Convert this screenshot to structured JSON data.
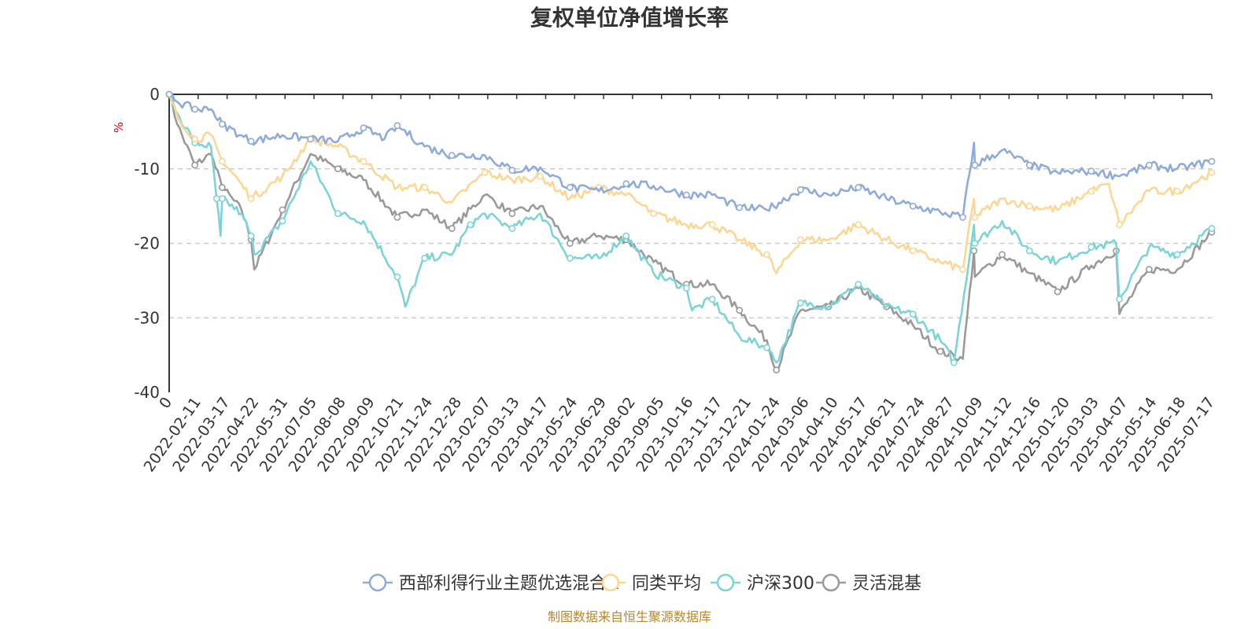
{
  "chart_data": {
    "type": "line",
    "title": "复权单位净值增长率",
    "ylabel": "%",
    "ylim": [
      -40,
      0
    ],
    "yticks": [
      0,
      -10,
      -20,
      -30,
      -40
    ],
    "xlim": [
      "2022-01-10",
      "2025-07-31"
    ],
    "xticks": [
      "0",
      "2022-02-11",
      "2022-03-17",
      "2022-04-22",
      "2022-05-31",
      "2022-07-05",
      "2022-08-08",
      "2022-09-09",
      "2022-10-21",
      "2022-11-24",
      "2022-12-28",
      "2023-02-07",
      "2023-03-13",
      "2023-04-17",
      "2023-05-24",
      "2023-06-29",
      "2023-08-02",
      "2023-09-05",
      "2023-10-16",
      "2023-11-17",
      "2023-12-21",
      "2024-01-24",
      "2024-03-06",
      "2024-04-10",
      "2024-05-17",
      "2024-06-21",
      "2024-07-24",
      "2024-08-27",
      "2024-10-09",
      "2024-11-12",
      "2024-12-16",
      "2025-01-20",
      "2025-03-03",
      "2025-04-07",
      "2025-05-14",
      "2025-06-18",
      "2025-07-17"
    ],
    "grid": true,
    "legend_position": "bottom",
    "series": [
      {
        "name": "西部利得行业主题优选混合A",
        "color": "#8fabd9",
        "points": [
          [
            "2022-01-10",
            0
          ],
          [
            "2022-01-20",
            -1
          ],
          [
            "2022-02-11",
            -2
          ],
          [
            "2022-03-03",
            -2
          ],
          [
            "2022-03-17",
            -4
          ],
          [
            "2022-04-10",
            -5.5
          ],
          [
            "2022-04-22",
            -6.3
          ],
          [
            "2022-05-31",
            -5.5
          ],
          [
            "2022-07-05",
            -6
          ],
          [
            "2022-08-08",
            -6.3
          ],
          [
            "2022-09-09",
            -4.5
          ],
          [
            "2022-10-05",
            -6
          ],
          [
            "2022-10-21",
            -4.2
          ],
          [
            "2022-11-24",
            -7
          ],
          [
            "2022-12-28",
            -8.2
          ],
          [
            "2023-02-07",
            -8.2
          ],
          [
            "2023-03-13",
            -10.2
          ],
          [
            "2023-04-17",
            -9.8
          ],
          [
            "2023-05-24",
            -12.5
          ],
          [
            "2023-06-29",
            -13
          ],
          [
            "2023-08-02",
            -12
          ],
          [
            "2023-09-05",
            -12.3
          ],
          [
            "2023-10-16",
            -13.5
          ],
          [
            "2023-11-17",
            -13.5
          ],
          [
            "2023-12-21",
            -15.2
          ],
          [
            "2024-01-24",
            -15.5
          ],
          [
            "2024-03-06",
            -12.8
          ],
          [
            "2024-04-10",
            -13.5
          ],
          [
            "2024-05-17",
            -12.5
          ],
          [
            "2024-06-21",
            -14
          ],
          [
            "2024-07-24",
            -15
          ],
          [
            "2024-08-27",
            -15.8
          ],
          [
            "2024-09-24",
            -16.5
          ],
          [
            "2024-10-08",
            -6.5
          ],
          [
            "2024-10-09",
            -9.5
          ],
          [
            "2024-11-12",
            -7.5
          ],
          [
            "2024-12-16",
            -9.5
          ],
          [
            "2025-01-20",
            -10.5
          ],
          [
            "2025-03-03",
            -10.3
          ],
          [
            "2025-04-07",
            -11
          ],
          [
            "2025-05-14",
            -9.5
          ],
          [
            "2025-06-18",
            -10
          ],
          [
            "2025-07-31",
            -9
          ]
        ]
      },
      {
        "name": "同类平均",
        "color": "#fcd794",
        "points": [
          [
            "2022-01-10",
            0
          ],
          [
            "2022-01-20",
            -3
          ],
          [
            "2022-02-11",
            -6
          ],
          [
            "2022-03-03",
            -5.5
          ],
          [
            "2022-03-17",
            -9
          ],
          [
            "2022-04-10",
            -12
          ],
          [
            "2022-04-22",
            -14
          ],
          [
            "2022-05-31",
            -11
          ],
          [
            "2022-07-05",
            -6
          ],
          [
            "2022-08-08",
            -7
          ],
          [
            "2022-09-09",
            -9
          ],
          [
            "2022-10-21",
            -12.5
          ],
          [
            "2022-11-24",
            -12.5
          ],
          [
            "2022-12-28",
            -14.5
          ],
          [
            "2023-02-07",
            -10.5
          ],
          [
            "2023-03-13",
            -11.5
          ],
          [
            "2023-04-17",
            -11
          ],
          [
            "2023-05-24",
            -14
          ],
          [
            "2023-06-29",
            -12.5
          ],
          [
            "2023-08-02",
            -13.5
          ],
          [
            "2023-09-05",
            -16
          ],
          [
            "2023-10-16",
            -17.5
          ],
          [
            "2023-11-17",
            -17.5
          ],
          [
            "2023-12-21",
            -19.5
          ],
          [
            "2024-01-24",
            -21.5
          ],
          [
            "2024-02-05",
            -24
          ],
          [
            "2024-03-06",
            -19.5
          ],
          [
            "2024-04-10",
            -19.5
          ],
          [
            "2024-05-17",
            -17.5
          ],
          [
            "2024-06-21",
            -19.5
          ],
          [
            "2024-07-24",
            -21
          ],
          [
            "2024-08-27",
            -22.5
          ],
          [
            "2024-09-24",
            -23.5
          ],
          [
            "2024-10-08",
            -14
          ],
          [
            "2024-10-09",
            -16.5
          ],
          [
            "2024-11-12",
            -14
          ],
          [
            "2024-12-16",
            -15
          ],
          [
            "2025-01-20",
            -15.5
          ],
          [
            "2025-03-03",
            -13
          ],
          [
            "2025-03-25",
            -12
          ],
          [
            "2025-04-07",
            -17.5
          ],
          [
            "2025-05-14",
            -13
          ],
          [
            "2025-06-18",
            -13
          ],
          [
            "2025-07-31",
            -10.5
          ]
        ]
      },
      {
        "name": "沪深300",
        "color": "#7ed3d7",
        "points": [
          [
            "2022-01-10",
            0
          ],
          [
            "2022-01-20",
            -2.5
          ],
          [
            "2022-02-11",
            -6.5
          ],
          [
            "2022-03-03",
            -7
          ],
          [
            "2022-03-10",
            -14
          ],
          [
            "2022-03-15",
            -19
          ],
          [
            "2022-03-17",
            -14
          ],
          [
            "2022-04-10",
            -16
          ],
          [
            "2022-04-22",
            -19
          ],
          [
            "2022-04-26",
            -21.5
          ],
          [
            "2022-05-31",
            -17
          ],
          [
            "2022-07-05",
            -9
          ],
          [
            "2022-08-08",
            -16
          ],
          [
            "2022-09-09",
            -17
          ],
          [
            "2022-10-21",
            -24.5
          ],
          [
            "2022-10-31",
            -28.5
          ],
          [
            "2022-11-24",
            -22
          ],
          [
            "2022-12-28",
            -21.5
          ],
          [
            "2023-01-20",
            -17.5
          ],
          [
            "2023-02-07",
            -16
          ],
          [
            "2023-03-13",
            -18
          ],
          [
            "2023-04-17",
            -16
          ],
          [
            "2023-05-24",
            -22
          ],
          [
            "2023-06-29",
            -22
          ],
          [
            "2023-08-02",
            -19
          ],
          [
            "2023-09-05",
            -24
          ],
          [
            "2023-10-16",
            -26
          ],
          [
            "2023-10-23",
            -29
          ],
          [
            "2023-11-17",
            -27.5
          ],
          [
            "2023-12-21",
            -32.5
          ],
          [
            "2024-01-24",
            -34
          ],
          [
            "2024-02-05",
            -36
          ],
          [
            "2024-03-06",
            -28
          ],
          [
            "2024-04-10",
            -28.5
          ],
          [
            "2024-05-17",
            -25.5
          ],
          [
            "2024-06-21",
            -28.5
          ],
          [
            "2024-07-24",
            -29.5
          ],
          [
            "2024-08-27",
            -33
          ],
          [
            "2024-09-13",
            -36
          ],
          [
            "2024-10-08",
            -17.5
          ],
          [
            "2024-10-09",
            -20
          ],
          [
            "2024-11-12",
            -17
          ],
          [
            "2024-12-16",
            -21
          ],
          [
            "2025-01-20",
            -22.5
          ],
          [
            "2025-03-03",
            -20.5
          ],
          [
            "2025-04-03",
            -20
          ],
          [
            "2025-04-07",
            -27.5
          ],
          [
            "2025-05-14",
            -20.5
          ],
          [
            "2025-06-18",
            -21.5
          ],
          [
            "2025-07-31",
            -18
          ]
        ]
      },
      {
        "name": "灵活混基",
        "color": "#9a9a9a",
        "points": [
          [
            "2022-01-10",
            0
          ],
          [
            "2022-01-20",
            -4
          ],
          [
            "2022-02-11",
            -9.5
          ],
          [
            "2022-03-03",
            -8
          ],
          [
            "2022-03-17",
            -12.5
          ],
          [
            "2022-04-10",
            -15.5
          ],
          [
            "2022-04-22",
            -19.5
          ],
          [
            "2022-04-26",
            -23.5
          ],
          [
            "2022-05-31",
            -15.5
          ],
          [
            "2022-07-05",
            -8
          ],
          [
            "2022-08-08",
            -10
          ],
          [
            "2022-09-09",
            -11.5
          ],
          [
            "2022-10-21",
            -16.5
          ],
          [
            "2022-11-24",
            -15.5
          ],
          [
            "2022-12-28",
            -18
          ],
          [
            "2023-02-07",
            -13.5
          ],
          [
            "2023-03-13",
            -16
          ],
          [
            "2023-04-17",
            -15
          ],
          [
            "2023-05-24",
            -20
          ],
          [
            "2023-06-29",
            -19
          ],
          [
            "2023-08-02",
            -19.5
          ],
          [
            "2023-09-05",
            -22.5
          ],
          [
            "2023-10-16",
            -25.5
          ],
          [
            "2023-11-17",
            -25.5
          ],
          [
            "2023-12-21",
            -29
          ],
          [
            "2024-01-24",
            -33
          ],
          [
            "2024-02-05",
            -37
          ],
          [
            "2024-03-06",
            -29
          ],
          [
            "2024-04-10",
            -28.5
          ],
          [
            "2024-05-17",
            -26
          ],
          [
            "2024-06-21",
            -28.5
          ],
          [
            "2024-07-24",
            -31
          ],
          [
            "2024-08-27",
            -34.5
          ],
          [
            "2024-09-24",
            -35.5
          ],
          [
            "2024-10-08",
            -21
          ],
          [
            "2024-10-09",
            -24.5
          ],
          [
            "2024-11-12",
            -21.5
          ],
          [
            "2024-12-16",
            -24
          ],
          [
            "2025-01-20",
            -26.5
          ],
          [
            "2025-03-03",
            -23
          ],
          [
            "2025-04-03",
            -21
          ],
          [
            "2025-04-07",
            -29.5
          ],
          [
            "2025-05-14",
            -23.5
          ],
          [
            "2025-06-18",
            -23.5
          ],
          [
            "2025-07-31",
            -18.5
          ]
        ]
      }
    ],
    "source_note": "制图数据来自恒生聚源数据库"
  }
}
